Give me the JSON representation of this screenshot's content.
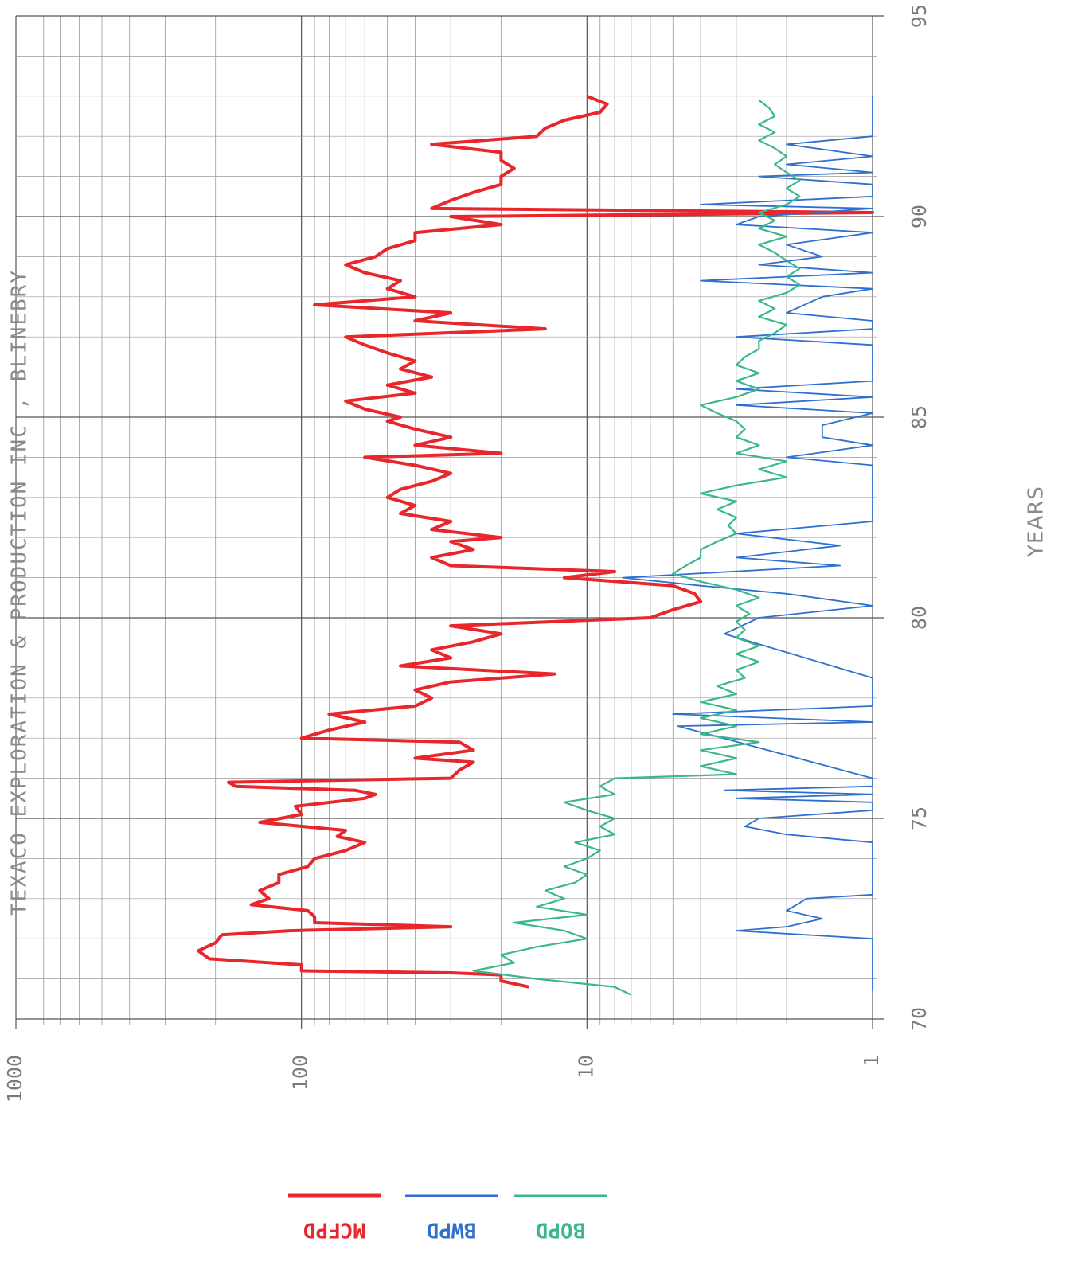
{
  "chart_data": {
    "type": "line",
    "title": "TEXACO EXPLORATION & PRODUCTION INC     , BLINEBRY",
    "xlabel": "YEARS",
    "ylabel": "",
    "xlim": [
      70,
      95
    ],
    "x_ticks": [
      "70",
      "75",
      "80",
      "85",
      "90",
      "95"
    ],
    "ylim": [
      1,
      1000
    ],
    "y_scale": "log",
    "y_ticks": [
      "1",
      "10",
      "100",
      "1000"
    ],
    "grid": true,
    "legend_position": "bottom",
    "series": [
      {
        "name": "MCFPD",
        "color": "#e8262b",
        "points": [
          [
            70.8,
            16
          ],
          [
            70.95,
            20
          ],
          [
            71.1,
            20
          ],
          [
            71.15,
            30
          ],
          [
            71.2,
            100
          ],
          [
            71.35,
            100
          ],
          [
            71.5,
            210
          ],
          [
            71.7,
            230
          ],
          [
            71.9,
            200
          ],
          [
            72.1,
            190
          ],
          [
            72.2,
            110
          ],
          [
            72.3,
            30
          ],
          [
            72.4,
            90
          ],
          [
            72.55,
            90
          ],
          [
            72.7,
            95
          ],
          [
            72.85,
            150
          ],
          [
            73.0,
            130
          ],
          [
            73.2,
            140
          ],
          [
            73.4,
            120
          ],
          [
            73.6,
            120
          ],
          [
            73.8,
            95
          ],
          [
            74.0,
            90
          ],
          [
            74.2,
            70
          ],
          [
            74.4,
            60
          ],
          [
            74.55,
            75
          ],
          [
            74.7,
            70
          ],
          [
            74.9,
            140
          ],
          [
            75.1,
            100
          ],
          [
            75.3,
            105
          ],
          [
            75.5,
            60
          ],
          [
            75.6,
            55
          ],
          [
            75.7,
            65
          ],
          [
            75.8,
            170
          ],
          [
            75.9,
            180
          ],
          [
            76.0,
            30
          ],
          [
            76.2,
            28
          ],
          [
            76.4,
            25
          ],
          [
            76.5,
            40
          ],
          [
            76.7,
            25
          ],
          [
            76.9,
            28
          ],
          [
            77.0,
            100
          ],
          [
            77.2,
            80
          ],
          [
            77.4,
            60
          ],
          [
            77.6,
            80
          ],
          [
            77.8,
            40
          ],
          [
            78.0,
            35
          ],
          [
            78.2,
            40
          ],
          [
            78.4,
            30
          ],
          [
            78.6,
            13
          ],
          [
            78.8,
            45
          ],
          [
            79.0,
            30
          ],
          [
            79.2,
            35
          ],
          [
            79.4,
            25
          ],
          [
            79.6,
            20
          ],
          [
            79.8,
            30
          ],
          [
            80.0,
            6
          ],
          [
            80.2,
            5
          ],
          [
            80.4,
            4
          ],
          [
            80.6,
            4.2
          ],
          [
            80.8,
            5
          ],
          [
            81.0,
            12
          ],
          [
            81.15,
            8
          ],
          [
            81.3,
            30
          ],
          [
            81.5,
            35
          ],
          [
            81.7,
            25
          ],
          [
            81.9,
            30
          ],
          [
            82.0,
            20
          ],
          [
            82.2,
            35
          ],
          [
            82.4,
            30
          ],
          [
            82.6,
            45
          ],
          [
            82.8,
            40
          ],
          [
            83.0,
            50
          ],
          [
            83.2,
            45
          ],
          [
            83.4,
            35
          ],
          [
            83.6,
            30
          ],
          [
            83.8,
            40
          ],
          [
            84.0,
            60
          ],
          [
            84.1,
            20
          ],
          [
            84.3,
            40
          ],
          [
            84.5,
            30
          ],
          [
            84.7,
            40
          ],
          [
            84.9,
            50
          ],
          [
            85.0,
            45
          ],
          [
            85.2,
            60
          ],
          [
            85.4,
            70
          ],
          [
            85.6,
            40
          ],
          [
            85.8,
            50
          ],
          [
            86.0,
            35
          ],
          [
            86.2,
            45
          ],
          [
            86.4,
            40
          ],
          [
            86.6,
            50
          ],
          [
            86.8,
            60
          ],
          [
            87.0,
            70
          ],
          [
            87.2,
            14
          ],
          [
            87.4,
            40
          ],
          [
            87.6,
            30
          ],
          [
            87.8,
            90
          ],
          [
            88.0,
            40
          ],
          [
            88.2,
            50
          ],
          [
            88.4,
            45
          ],
          [
            88.6,
            60
          ],
          [
            88.8,
            70
          ],
          [
            89.0,
            55
          ],
          [
            89.2,
            50
          ],
          [
            89.4,
            40
          ],
          [
            89.6,
            40
          ],
          [
            89.8,
            20
          ],
          [
            90.0,
            30
          ],
          [
            90.1,
            1
          ],
          [
            90.2,
            35
          ],
          [
            90.4,
            30
          ],
          [
            90.6,
            25
          ],
          [
            90.8,
            20
          ],
          [
            91.0,
            20
          ],
          [
            91.2,
            18
          ],
          [
            91.4,
            20
          ],
          [
            91.6,
            20
          ],
          [
            91.8,
            35
          ],
          [
            92.0,
            15
          ],
          [
            92.2,
            14
          ],
          [
            92.4,
            12
          ],
          [
            92.6,
            9
          ],
          [
            92.8,
            8.5
          ],
          [
            93.0,
            10
          ]
        ]
      },
      {
        "name": "BWPD",
        "color": "#2f6fcf",
        "points": [
          [
            70.7,
            1
          ],
          [
            72.0,
            1
          ],
          [
            72.2,
            3
          ],
          [
            72.3,
            2
          ],
          [
            72.5,
            1.5
          ],
          [
            72.7,
            2
          ],
          [
            73.0,
            1.7
          ],
          [
            73.1,
            1
          ],
          [
            74.4,
            1
          ],
          [
            74.6,
            2
          ],
          [
            74.8,
            2.8
          ],
          [
            75.0,
            2.5
          ],
          [
            75.2,
            1
          ],
          [
            75.4,
            1
          ],
          [
            75.5,
            3
          ],
          [
            75.6,
            1
          ],
          [
            75.7,
            3.3
          ],
          [
            75.8,
            1
          ],
          [
            76.0,
            1
          ],
          [
            77.3,
            4.8
          ],
          [
            77.4,
            1
          ],
          [
            77.6,
            5
          ],
          [
            77.8,
            1
          ],
          [
            78.5,
            1
          ],
          [
            79.6,
            3.3
          ],
          [
            80.0,
            2.5
          ],
          [
            80.3,
            1
          ],
          [
            80.6,
            2
          ],
          [
            80.8,
            4
          ],
          [
            81.0,
            7.5
          ],
          [
            81.3,
            1.3
          ],
          [
            81.5,
            3
          ],
          [
            81.8,
            1.3
          ],
          [
            82.1,
            3
          ],
          [
            82.4,
            1
          ],
          [
            83.8,
            1
          ],
          [
            84.0,
            2
          ],
          [
            84.3,
            1
          ],
          [
            84.5,
            1.5
          ],
          [
            84.8,
            1.5
          ],
          [
            85.1,
            1
          ],
          [
            85.3,
            3
          ],
          [
            85.5,
            1
          ],
          [
            85.7,
            3
          ],
          [
            85.9,
            1
          ],
          [
            86.8,
            1
          ],
          [
            87.0,
            3
          ],
          [
            87.2,
            1
          ],
          [
            87.4,
            1
          ],
          [
            87.6,
            2
          ],
          [
            88.0,
            1.5
          ],
          [
            88.2,
            1
          ],
          [
            88.4,
            4
          ],
          [
            88.6,
            1
          ],
          [
            88.8,
            2.5
          ],
          [
            89.0,
            1.5
          ],
          [
            89.3,
            2
          ],
          [
            89.6,
            1
          ],
          [
            89.8,
            3
          ],
          [
            90.0,
            2.5
          ],
          [
            90.2,
            1
          ],
          [
            90.3,
            4
          ],
          [
            90.5,
            1
          ],
          [
            90.8,
            1
          ],
          [
            91.0,
            2.5
          ],
          [
            91.1,
            1
          ],
          [
            91.3,
            2
          ],
          [
            91.5,
            1
          ],
          [
            91.8,
            2
          ],
          [
            92.0,
            1
          ],
          [
            93.0,
            1
          ]
        ]
      },
      {
        "name": "BOPD",
        "color": "#3ab88a",
        "points": [
          [
            70.6,
            7
          ],
          [
            70.8,
            8
          ],
          [
            71.0,
            15
          ],
          [
            71.2,
            25
          ],
          [
            71.4,
            18
          ],
          [
            71.6,
            20
          ],
          [
            71.8,
            15
          ],
          [
            72.0,
            10
          ],
          [
            72.2,
            12
          ],
          [
            72.4,
            18
          ],
          [
            72.6,
            10
          ],
          [
            72.8,
            15
          ],
          [
            73.0,
            12
          ],
          [
            73.2,
            14
          ],
          [
            73.4,
            11
          ],
          [
            73.6,
            10
          ],
          [
            73.8,
            12
          ],
          [
            74.0,
            10
          ],
          [
            74.2,
            9
          ],
          [
            74.4,
            11
          ],
          [
            74.6,
            8
          ],
          [
            74.8,
            9
          ],
          [
            75.0,
            8
          ],
          [
            75.2,
            10
          ],
          [
            75.4,
            12
          ],
          [
            75.6,
            8
          ],
          [
            75.8,
            9
          ],
          [
            76.0,
            8
          ],
          [
            76.1,
            3
          ],
          [
            76.3,
            4
          ],
          [
            76.5,
            3
          ],
          [
            76.7,
            4
          ],
          [
            76.9,
            2.5
          ],
          [
            77.1,
            4
          ],
          [
            77.3,
            3
          ],
          [
            77.5,
            4
          ],
          [
            77.7,
            3
          ],
          [
            77.9,
            4
          ],
          [
            78.1,
            3
          ],
          [
            78.3,
            3.5
          ],
          [
            78.5,
            2.8
          ],
          [
            78.7,
            3
          ],
          [
            78.9,
            2.5
          ],
          [
            79.1,
            3
          ],
          [
            79.3,
            2.5
          ],
          [
            79.5,
            3
          ],
          [
            79.7,
            2.8
          ],
          [
            79.9,
            3
          ],
          [
            80.1,
            2.7
          ],
          [
            80.3,
            3
          ],
          [
            80.5,
            2.5
          ],
          [
            80.7,
            3
          ],
          [
            80.9,
            4
          ],
          [
            81.1,
            5
          ],
          [
            81.3,
            4.5
          ],
          [
            81.5,
            4
          ],
          [
            81.7,
            4
          ],
          [
            81.9,
            3.5
          ],
          [
            82.1,
            3
          ],
          [
            82.3,
            3.2
          ],
          [
            82.5,
            3
          ],
          [
            82.7,
            3.5
          ],
          [
            82.9,
            3
          ],
          [
            83.1,
            4
          ],
          [
            83.3,
            3
          ],
          [
            83.5,
            2
          ],
          [
            83.7,
            2.5
          ],
          [
            83.9,
            2
          ],
          [
            84.1,
            3
          ],
          [
            84.3,
            2.5
          ],
          [
            84.5,
            3
          ],
          [
            84.7,
            2.8
          ],
          [
            84.9,
            3
          ],
          [
            85.1,
            3.5
          ],
          [
            85.3,
            4
          ],
          [
            85.5,
            3
          ],
          [
            85.7,
            2.5
          ],
          [
            85.9,
            3
          ],
          [
            86.1,
            2.5
          ],
          [
            86.3,
            3
          ],
          [
            86.5,
            2.8
          ],
          [
            86.7,
            2.5
          ],
          [
            86.9,
            2.5
          ],
          [
            87.1,
            2.2
          ],
          [
            87.3,
            2
          ],
          [
            87.5,
            2.5
          ],
          [
            87.7,
            2.2
          ],
          [
            87.9,
            2.5
          ],
          [
            88.1,
            2
          ],
          [
            88.3,
            1.8
          ],
          [
            88.5,
            2
          ],
          [
            88.7,
            1.8
          ],
          [
            88.9,
            2
          ],
          [
            89.1,
            2.2
          ],
          [
            89.3,
            2.5
          ],
          [
            89.5,
            2
          ],
          [
            89.7,
            2.5
          ],
          [
            89.9,
            2.2
          ],
          [
            90.1,
            2.5
          ],
          [
            90.3,
            2
          ],
          [
            90.5,
            1.8
          ],
          [
            90.7,
            2
          ],
          [
            90.9,
            1.8
          ],
          [
            91.1,
            2
          ],
          [
            91.3,
            2.2
          ],
          [
            91.5,
            2
          ],
          [
            91.7,
            2.2
          ],
          [
            91.9,
            2.5
          ],
          [
            92.1,
            2.2
          ],
          [
            92.3,
            2.5
          ],
          [
            92.5,
            2.2
          ],
          [
            92.7,
            2.3
          ],
          [
            92.9,
            2.5
          ]
        ]
      }
    ]
  }
}
